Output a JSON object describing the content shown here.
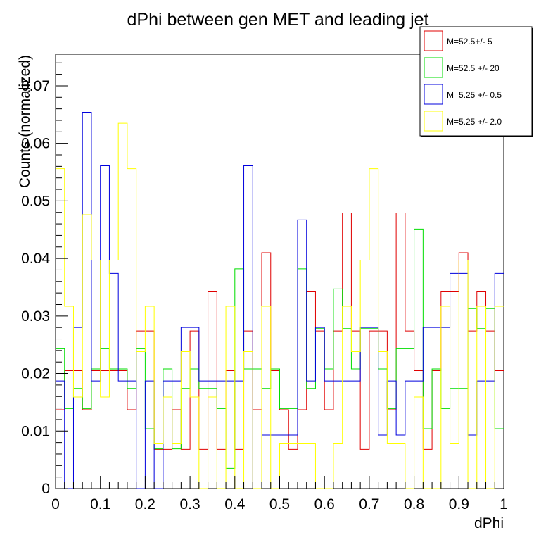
{
  "chart_data": {
    "type": "histogram-step",
    "title": "dPhi between gen MET and leading jet",
    "xlabel": "dPhi",
    "ylabel": "Counts (normalized)",
    "xlim": [
      0,
      1
    ],
    "ylim": [
      0,
      0.0755
    ],
    "xticks": [
      0,
      0.1,
      0.2,
      0.3,
      0.4,
      0.5,
      0.6,
      0.7,
      0.8,
      0.9,
      1
    ],
    "xtick_labels": [
      "0",
      "0.1",
      "0.2",
      "0.3",
      "0.4",
      "0.5",
      "0.6",
      "0.7",
      "0.8",
      "0.9",
      "1"
    ],
    "yticks": [
      0,
      0.01,
      0.02,
      0.03,
      0.04,
      0.05,
      0.06,
      0.07
    ],
    "ytick_labels": [
      "0",
      "0.01",
      "0.02",
      "0.03",
      "0.04",
      "0.05",
      "0.06",
      "0.07"
    ],
    "grid": false,
    "legend_position": "top-right",
    "bins": 50,
    "series": [
      {
        "name": "M=52.5+/- 5",
        "color": "#e00000",
        "values": [
          0.0137,
          0.0205,
          0.0205,
          0.0137,
          0.0205,
          0.0205,
          0.0205,
          0.0205,
          0.0137,
          0.0274,
          0.0274,
          0.0068,
          0.0068,
          0.0137,
          0.0068,
          0.0274,
          0.0068,
          0.0342,
          0.0068,
          0.0205,
          0.0068,
          0.0274,
          0.0137,
          0.041,
          0.0205,
          0.0137,
          0.0068,
          0.0137,
          0.0342,
          0.0274,
          0.0137,
          0.0274,
          0.0479,
          0.0274,
          0.0068,
          0.0274,
          0.0274,
          0.0137,
          0.0479,
          0.0274,
          0.0205,
          0.0068,
          0.0205,
          0.0342,
          0.0342,
          0.041,
          0.0274,
          0.0342,
          0.0274,
          0.0205
        ]
      },
      {
        "name": "M=52.5 +/- 20",
        "color": "#00dd00",
        "values": [
          0.0243,
          0.0139,
          0.0174,
          0.0139,
          0.0208,
          0.0243,
          0.0208,
          0.0208,
          0.0174,
          0.0243,
          0.0104,
          0.0069,
          0.0208,
          0.0069,
          0.0174,
          0.0208,
          0.0174,
          0.0174,
          0.0139,
          0.0035,
          0.0382,
          0.0208,
          0.0208,
          0.0174,
          0.0208,
          0.0139,
          0.0139,
          0.0382,
          0.0174,
          0.0278,
          0.0208,
          0.0347,
          0.0278,
          0.0208,
          0.0278,
          0.0278,
          0.0208,
          0.0139,
          0.0243,
          0.0243,
          0.0451,
          0.0104,
          0.0208,
          0.0139,
          0.0174,
          0.0174,
          0.0313,
          0.0278,
          0.0313,
          0.0104
        ]
      },
      {
        "name": "M=5.25 +/- 0.5",
        "color": "#0000dd",
        "values": [
          0.0187,
          0.0,
          0.028,
          0.0654,
          0.0187,
          0.0561,
          0.0374,
          0.0187,
          0.0187,
          0.0,
          0.0187,
          0.0,
          0.0187,
          0.0187,
          0.028,
          0.028,
          0.0187,
          0.0187,
          0.0187,
          0.0187,
          0.0187,
          0.0561,
          0.0,
          0.0093,
          0.0093,
          0.0093,
          0.0093,
          0.0467,
          0.0187,
          0.028,
          0.0187,
          0.0187,
          0.0187,
          0.0187,
          0.028,
          0.028,
          0.0093,
          0.0187,
          0.0093,
          0.0187,
          0.0187,
          0.028,
          0.028,
          0.028,
          0.0374,
          0.0374,
          0.0093,
          0.0187,
          0.0187,
          0.0374
        ]
      },
      {
        "name": "M=5.25 +/- 2.0",
        "color": "#ffff00",
        "values": [
          0.0556,
          0.0317,
          0.0159,
          0.0476,
          0.0397,
          0.0159,
          0.0397,
          0.0635,
          0.0556,
          0.0238,
          0.0317,
          0.0079,
          0.0159,
          0.0079,
          0.0238,
          0.0159,
          0.0,
          0.0159,
          0.0,
          0.0317,
          0.0,
          0.0238,
          0.0,
          0.0317,
          0.0,
          0.0079,
          0.0079,
          0.0079,
          0.0079,
          0.0,
          0.0,
          0.0079,
          0.0317,
          0.0238,
          0.0397,
          0.0556,
          0.0238,
          0.0079,
          0.0079,
          0.0,
          0.0159,
          0.0,
          0.0,
          0.0317,
          0.0079,
          0.0397,
          0.0,
          0.0317,
          0.0,
          0.0317
        ]
      }
    ]
  }
}
